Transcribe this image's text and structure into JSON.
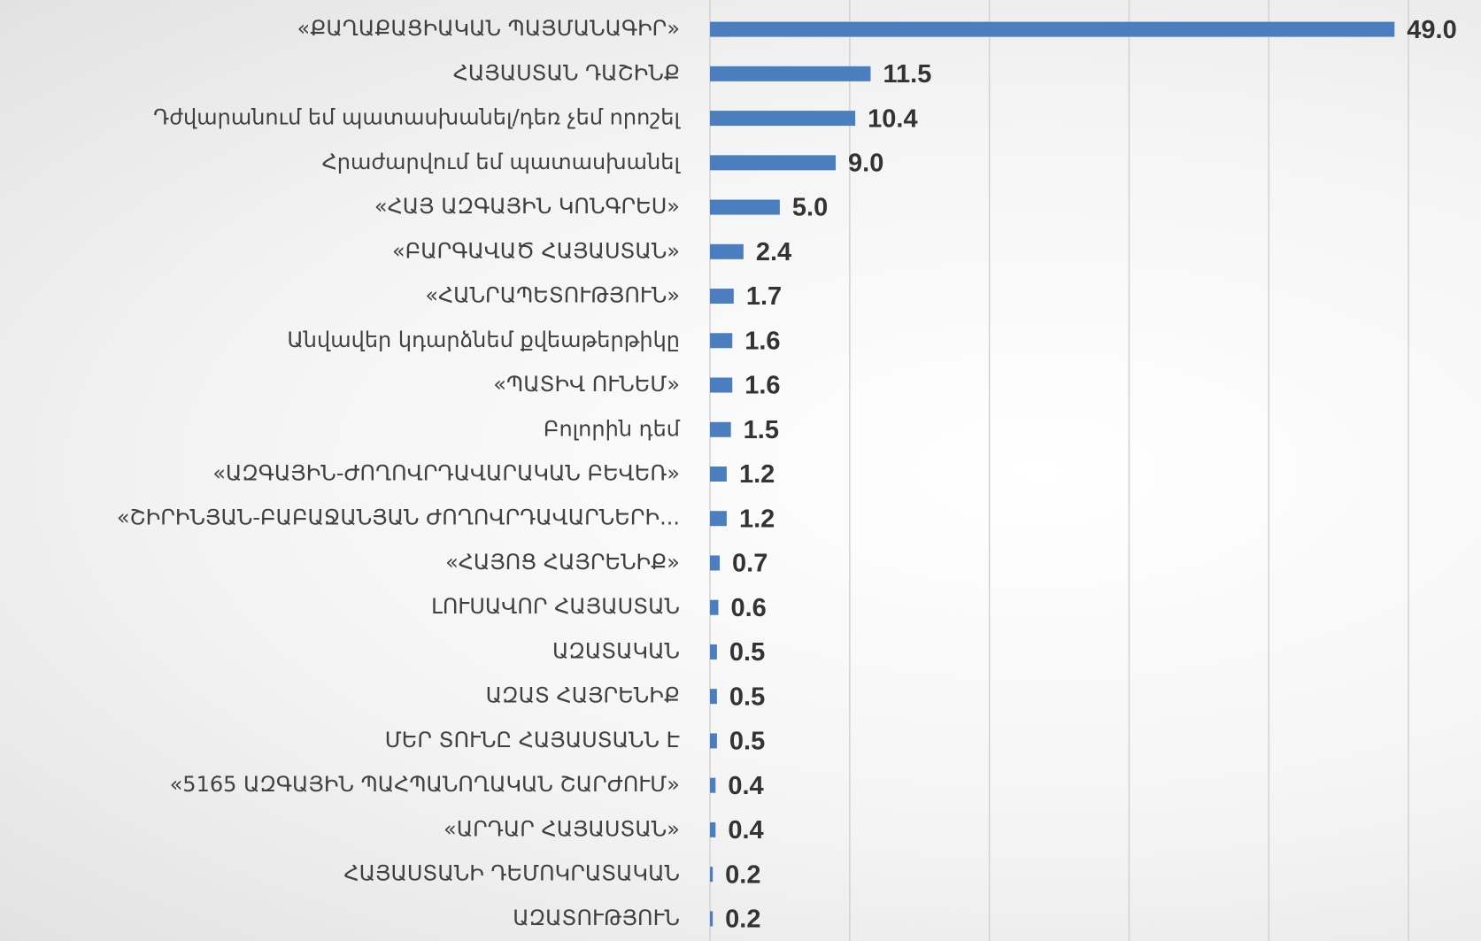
{
  "chart_data": {
    "type": "bar",
    "orientation": "horizontal",
    "categories": [
      "«ՔԱՂԱՔԱՑԻԱԿԱՆ ՊԱՅՄԱՆԱԳԻՐ»",
      "ՀԱՅԱՍՏԱՆ ԴԱՇԻՆՔ",
      "Դժվարանում եմ պատասխանել/դեռ չեմ որոշել",
      "Հրաժարվում եմ պատասխանել",
      "«ՀԱՅ ԱԶԳԱՅԻՆ ԿՈՆԳՐԵՍ»",
      "«ԲԱՐԳԱՎԱԾ ՀԱՅԱՍՏԱՆ»",
      "«ՀԱՆՐԱՊԵՏՈՒԹՅՈՒՆ»",
      "Անվավեր կդարձնեմ քվեաթերթիկը",
      "«ՊԱՏԻՎ ՈՒՆԵՄ»",
      "Բոլորին դեմ",
      "«ԱԶԳԱՅԻՆ-ԺՈՂՈՎՐԴԱՎԱՐԱԿԱՆ ԲԵՎԵՌ»",
      "«ՇԻՐԻՆՅԱՆ-ԲԱԲԱՋԱՆՅԱՆ ԺՈՂՈՎՐԴԱՎԱՐՆԵՐԻ...",
      "«ՀԱՅՈՑ ՀԱՅՐԵՆԻՔ»",
      "ԼՈՒՍԱՎՈՐ ՀԱՅԱՍՏԱՆ",
      "ԱԶԱՏԱԿԱՆ",
      "ԱԶԱՏ ՀԱՅՐԵՆԻՔ",
      "ՄԵՐ ՏՈՒՆԸ ՀԱՅԱՍՏԱՆՆ Է",
      "«5165 ԱԶԳԱՅԻՆ ՊԱՀՊԱՆՈՂԱԿԱՆ ՇԱՐԺՈՒՄ»",
      "«ԱՐԴԱՐ ՀԱՅԱՍՏԱՆ»",
      "ՀԱՅԱՍՏԱՆԻ ԴԵՄՈԿՐԱՏԱԿԱՆ",
      "ԱԶԱՏՈՒԹՅՈՒՆ"
    ],
    "values": [
      49.0,
      11.5,
      10.4,
      9.0,
      5.0,
      2.4,
      1.7,
      1.6,
      1.6,
      1.5,
      1.2,
      1.2,
      0.7,
      0.6,
      0.5,
      0.5,
      0.5,
      0.4,
      0.4,
      0.2,
      0.2
    ],
    "value_labels": [
      "49.0",
      "11.5",
      "10.4",
      "9.0",
      "5.0",
      "2.4",
      "1.7",
      "1.6",
      "1.6",
      "1.5",
      "1.2",
      "1.2",
      "0.7",
      "0.6",
      "0.5",
      "0.5",
      "0.5",
      "0.4",
      "0.4",
      "0.2",
      "0.2"
    ],
    "color": "#4a7ebf",
    "xlim": [
      0,
      55
    ],
    "xticks": [
      0,
      10,
      20,
      30,
      40,
      50
    ],
    "grid": true
  }
}
